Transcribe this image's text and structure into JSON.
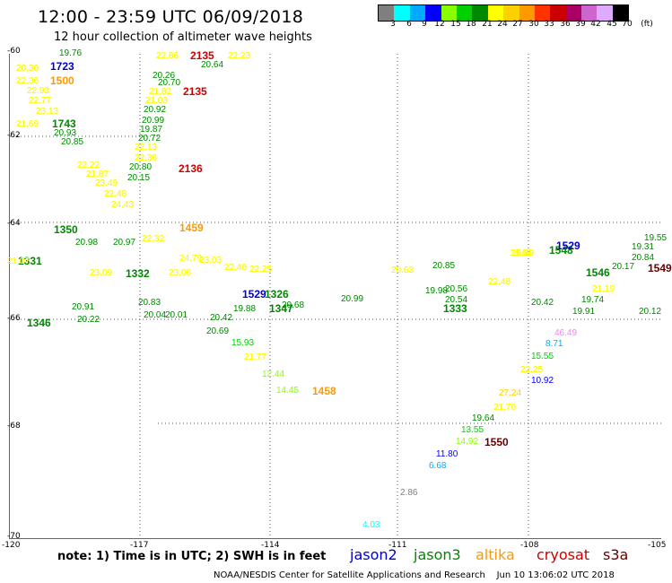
{
  "header": {
    "title": "12:00 - 23:59 UTC 06/09/2018",
    "subtitle": "12 hour collection of altimeter wave heights"
  },
  "colorbar": {
    "unit": "(ft)",
    "ticks": [
      "3",
      "6",
      "9",
      "12",
      "15",
      "18",
      "21",
      "24",
      "27",
      "30",
      "33",
      "36",
      "39",
      "42",
      "45",
      "70"
    ],
    "colors": [
      "#7f7f7f",
      "#00ffff",
      "#00aaff",
      "#0000ff",
      "#88ff00",
      "#00d000",
      "#008800",
      "#ffff00",
      "#ffd000",
      "#ff9900",
      "#ff3300",
      "#cc0000",
      "#aa0066",
      "#cc66cc",
      "#ddaaff",
      "#000000"
    ]
  },
  "axes": {
    "lat_labels": [
      "-60",
      "-62",
      "-64",
      "-66",
      "-68",
      "-70"
    ],
    "lon_labels": [
      "-120",
      "-117",
      "-114",
      "-111",
      "-108",
      "-105"
    ]
  },
  "note": "note: 1) Time is in UTC; 2) SWH is in feet",
  "legend": [
    {
      "name": "jason2",
      "color": "#0000cc"
    },
    {
      "name": "jason3",
      "color": "#008800"
    },
    {
      "name": "altika",
      "color": "#ff9900"
    },
    {
      "name": "cryosat",
      "color": "#cc0000"
    },
    {
      "name": "s3a",
      "color": "#660000"
    }
  ],
  "footer": "NOAA/NESDIS Center for Satellite Applications and Research    Jun 10 13:06:02 UTC 2018",
  "tracks": {
    "time_labels": [
      {
        "text": "1723",
        "color": "#0000cc"
      },
      {
        "text": "1500",
        "color": "#ff9900"
      },
      {
        "text": "2135",
        "color": "#cc0000"
      },
      {
        "text": "2135",
        "color": "#cc0000"
      },
      {
        "text": "1743",
        "color": "#008800"
      },
      {
        "text": "2136",
        "color": "#cc0000"
      },
      {
        "text": "1350",
        "color": "#008800"
      },
      {
        "text": "1459",
        "color": "#ff9900"
      },
      {
        "text": "1331",
        "color": "#008800"
      },
      {
        "text": "1332",
        "color": "#008800"
      },
      {
        "text": "1529",
        "color": "#0000cc"
      },
      {
        "text": "1326",
        "color": "#008800"
      },
      {
        "text": "1347",
        "color": "#008800"
      },
      {
        "text": "1548",
        "color": "#008800"
      },
      {
        "text": "1333",
        "color": "#008800"
      },
      {
        "text": "1346",
        "color": "#008800"
      },
      {
        "text": "1529",
        "color": "#0000cc"
      },
      {
        "text": "1546",
        "color": "#008800"
      },
      {
        "text": "1458",
        "color": "#ff9900"
      },
      {
        "text": "1550",
        "color": "#660000"
      },
      {
        "text": "1549",
        "color": "#660000"
      }
    ],
    "swh_labels": [
      {
        "text": "19.76",
        "color": "#008800"
      },
      {
        "text": "20.30",
        "color": "#ffff00"
      },
      {
        "text": "22.36",
        "color": "#ffff00"
      },
      {
        "text": "22.93",
        "color": "#ffff00"
      },
      {
        "text": "22.77",
        "color": "#ffff00"
      },
      {
        "text": "23.13",
        "color": "#ffff00"
      },
      {
        "text": "21.69",
        "color": "#ffff00"
      },
      {
        "text": "20.93",
        "color": "#008800"
      },
      {
        "text": "20.85",
        "color": "#008800"
      },
      {
        "text": "22.86",
        "color": "#ffff00"
      },
      {
        "text": "20.64",
        "color": "#008800"
      },
      {
        "text": "22.23",
        "color": "#ffff00"
      },
      {
        "text": "20.26",
        "color": "#008800"
      },
      {
        "text": "20.70",
        "color": "#008800"
      },
      {
        "text": "21.82",
        "color": "#ffff00"
      },
      {
        "text": "21.03",
        "color": "#ffff00"
      },
      {
        "text": "20.92",
        "color": "#008800"
      },
      {
        "text": "20.99",
        "color": "#008800"
      },
      {
        "text": "19.87",
        "color": "#008800"
      },
      {
        "text": "20.72",
        "color": "#008800"
      },
      {
        "text": "22.13",
        "color": "#ffff00"
      },
      {
        "text": "22.36",
        "color": "#ffff00"
      },
      {
        "text": "20.80",
        "color": "#008800"
      },
      {
        "text": "20.15",
        "color": "#008800"
      },
      {
        "text": "22.22",
        "color": "#ffff00"
      },
      {
        "text": "21.87",
        "color": "#ffff00"
      },
      {
        "text": "23.49",
        "color": "#ffff00"
      },
      {
        "text": "22.48",
        "color": "#ffff00"
      },
      {
        "text": "24.43",
        "color": "#ffff00"
      },
      {
        "text": "20.98",
        "color": "#008800"
      },
      {
        "text": "20.97",
        "color": "#008800"
      },
      {
        "text": "22.32",
        "color": "#ffff00"
      },
      {
        "text": "21.07",
        "color": "#ffff00"
      },
      {
        "text": "23.09",
        "color": "#ffff00"
      },
      {
        "text": "24.79",
        "color": "#ffff00"
      },
      {
        "text": "23.03",
        "color": "#ffff00"
      },
      {
        "text": "22.48",
        "color": "#ffff00"
      },
      {
        "text": "22.25",
        "color": "#ffff00"
      },
      {
        "text": "23.06",
        "color": "#ffff00"
      },
      {
        "text": "20.91",
        "color": "#008800"
      },
      {
        "text": "20.22",
        "color": "#008800"
      },
      {
        "text": "20.83",
        "color": "#008800"
      },
      {
        "text": "20.04",
        "color": "#008800"
      },
      {
        "text": "20.01",
        "color": "#008800"
      },
      {
        "text": "19.88",
        "color": "#008800"
      },
      {
        "text": "20.42",
        "color": "#008800"
      },
      {
        "text": "20.69",
        "color": "#008800"
      },
      {
        "text": "15.93",
        "color": "#00d000"
      },
      {
        "text": "21.77",
        "color": "#ffff00"
      },
      {
        "text": "12.44",
        "color": "#88ff00"
      },
      {
        "text": "14.45",
        "color": "#88ff00"
      },
      {
        "text": "20.68",
        "color": "#008800"
      },
      {
        "text": "20.99",
        "color": "#008800"
      },
      {
        "text": "20.63",
        "color": "#ffff00"
      },
      {
        "text": "20.85",
        "color": "#008800"
      },
      {
        "text": "19.98",
        "color": "#008800"
      },
      {
        "text": "20.56",
        "color": "#008800"
      },
      {
        "text": "20.54",
        "color": "#008800"
      },
      {
        "text": "22.48",
        "color": "#ffff00"
      },
      {
        "text": "19.89",
        "color": "#ffff00"
      },
      {
        "text": "20.42",
        "color": "#008800"
      },
      {
        "text": "19.74",
        "color": "#008800"
      },
      {
        "text": "19.91",
        "color": "#008800"
      },
      {
        "text": "46.49",
        "color": "#ee88ee"
      },
      {
        "text": "8.71",
        "color": "#00aaff"
      },
      {
        "text": "15.55",
        "color": "#00d000"
      },
      {
        "text": "22.25",
        "color": "#ffff00"
      },
      {
        "text": "10.92",
        "color": "#0000ff"
      },
      {
        "text": "27.24",
        "color": "#ffd000"
      },
      {
        "text": "21.70",
        "color": "#ffff00"
      },
      {
        "text": "19.64",
        "color": "#008800"
      },
      {
        "text": "13.55",
        "color": "#00d000"
      },
      {
        "text": "14.92",
        "color": "#88ff00"
      },
      {
        "text": "11.80",
        "color": "#0000ff"
      },
      {
        "text": "6.68",
        "color": "#00aaff"
      },
      {
        "text": "2.86",
        "color": "#7f7f7f"
      },
      {
        "text": "4.03",
        "color": "#00ffff"
      },
      {
        "text": "19.31",
        "color": "#008800"
      },
      {
        "text": "19.55",
        "color": "#008800"
      },
      {
        "text": "20.84",
        "color": "#008800"
      },
      {
        "text": "20.17",
        "color": "#008800"
      },
      {
        "text": "21.19",
        "color": "#ffff00"
      },
      {
        "text": "20.12",
        "color": "#008800"
      },
      {
        "text": "19.61",
        "color": "#ffff00"
      }
    ]
  }
}
